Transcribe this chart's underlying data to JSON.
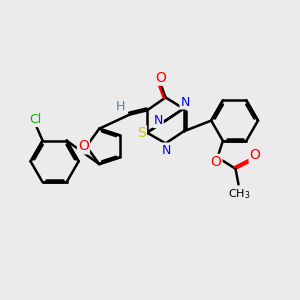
{
  "bg_color": "#ebebeb",
  "atom_colors": {
    "C": "#000000",
    "N": "#0000ee",
    "O": "#ff0000",
    "S": "#cccc00",
    "Cl": "#00bb00",
    "H": "#4488aa"
  },
  "bond_color": "#000000",
  "bond_width": 1.8,
  "font_size": 9,
  "figsize": [
    3.0,
    3.0
  ],
  "dpi": 100
}
